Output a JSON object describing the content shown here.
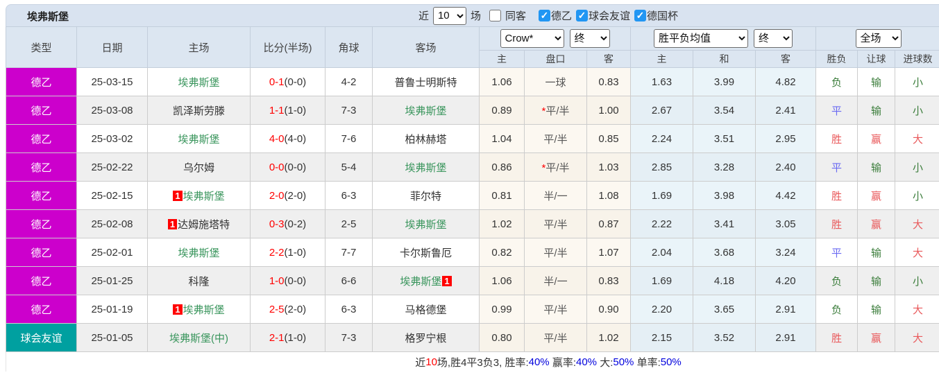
{
  "page": {
    "team_title": "埃弗斯堡"
  },
  "topbar": {
    "recent_label": "近",
    "recent_count": "10",
    "games_label": "场",
    "same_away_label": "同客",
    "same_away_checked": false,
    "filters": [
      {
        "label": "德乙",
        "checked": true
      },
      {
        "label": "球会友谊",
        "checked": true
      },
      {
        "label": "德国杯",
        "checked": true
      }
    ]
  },
  "table": {
    "columns": {
      "type": "类型",
      "date": "日期",
      "home": "主场",
      "score": "比分(半场)",
      "corner": "角球",
      "away": "客场"
    },
    "selects": {
      "bookmaker": "Crow*",
      "bookmaker_state": "终",
      "avg": "胜平负均值",
      "avg_state": "终",
      "scope": "全场"
    },
    "sub_columns": {
      "h_home": "主",
      "h_line": "盘口",
      "h_away": "客",
      "a_home": "主",
      "a_draw": "和",
      "a_away": "客",
      "r_wdl": "胜负",
      "r_handicap": "让球",
      "r_goals": "进球数"
    },
    "rows": [
      {
        "type": "德乙",
        "type_key": "league",
        "date": "25-03-15",
        "home": {
          "name": "埃弗斯堡",
          "green": true,
          "badge": ""
        },
        "score": {
          "full": "0-1",
          "half": "(0-0)"
        },
        "corner": "4-2",
        "away": {
          "name": "普鲁士明斯特",
          "green": false,
          "badge": ""
        },
        "crown": {
          "home": "1.06",
          "line": "一球",
          "star": false,
          "away": "0.83"
        },
        "avg": {
          "home": "1.63",
          "draw": "3.99",
          "away": "4.82"
        },
        "result": {
          "wdl": {
            "text": "负",
            "color": "green"
          },
          "handicap": {
            "text": "输",
            "color": "green"
          },
          "goals": {
            "text": "小",
            "color": "green"
          }
        }
      },
      {
        "type": "德乙",
        "type_key": "league",
        "date": "25-03-08",
        "home": {
          "name": "凯泽斯劳滕",
          "green": false,
          "badge": ""
        },
        "score": {
          "full": "1-1",
          "half": "(1-0)"
        },
        "corner": "7-3",
        "away": {
          "name": "埃弗斯堡",
          "green": true,
          "badge": ""
        },
        "crown": {
          "home": "0.89",
          "line": "平/半",
          "star": true,
          "away": "1.00"
        },
        "avg": {
          "home": "2.67",
          "draw": "3.54",
          "away": "2.41"
        },
        "result": {
          "wdl": {
            "text": "平",
            "color": "blue"
          },
          "handicap": {
            "text": "输",
            "color": "green"
          },
          "goals": {
            "text": "小",
            "color": "green"
          }
        }
      },
      {
        "type": "德乙",
        "type_key": "league",
        "date": "25-03-02",
        "home": {
          "name": "埃弗斯堡",
          "green": true,
          "badge": ""
        },
        "score": {
          "full": "4-0",
          "half": "(4-0)"
        },
        "corner": "7-6",
        "away": {
          "name": "柏林赫塔",
          "green": false,
          "badge": ""
        },
        "crown": {
          "home": "1.04",
          "line": "平/半",
          "star": false,
          "away": "0.85"
        },
        "avg": {
          "home": "2.24",
          "draw": "3.51",
          "away": "2.95"
        },
        "result": {
          "wdl": {
            "text": "胜",
            "color": "red"
          },
          "handicap": {
            "text": "赢",
            "color": "red"
          },
          "goals": {
            "text": "大",
            "color": "red"
          }
        }
      },
      {
        "type": "德乙",
        "type_key": "league",
        "date": "25-02-22",
        "home": {
          "name": "乌尔姆",
          "green": false,
          "badge": ""
        },
        "score": {
          "full": "0-0",
          "half": "(0-0)"
        },
        "corner": "5-4",
        "away": {
          "name": "埃弗斯堡",
          "green": true,
          "badge": ""
        },
        "crown": {
          "home": "0.86",
          "line": "平/半",
          "star": true,
          "away": "1.03"
        },
        "avg": {
          "home": "2.85",
          "draw": "3.28",
          "away": "2.40"
        },
        "result": {
          "wdl": {
            "text": "平",
            "color": "blue"
          },
          "handicap": {
            "text": "输",
            "color": "green"
          },
          "goals": {
            "text": "小",
            "color": "green"
          }
        }
      },
      {
        "type": "德乙",
        "type_key": "league",
        "date": "25-02-15",
        "home": {
          "name": "埃弗斯堡",
          "green": true,
          "badge": "1"
        },
        "score": {
          "full": "2-0",
          "half": "(2-0)"
        },
        "corner": "6-3",
        "away": {
          "name": "菲尔特",
          "green": false,
          "badge": ""
        },
        "crown": {
          "home": "0.81",
          "line": "半/一",
          "star": false,
          "away": "1.08"
        },
        "avg": {
          "home": "1.69",
          "draw": "3.98",
          "away": "4.42"
        },
        "result": {
          "wdl": {
            "text": "胜",
            "color": "red"
          },
          "handicap": {
            "text": "赢",
            "color": "red"
          },
          "goals": {
            "text": "小",
            "color": "green"
          }
        }
      },
      {
        "type": "德乙",
        "type_key": "league",
        "date": "25-02-08",
        "home": {
          "name": "达姆施塔特",
          "green": false,
          "badge": "1"
        },
        "score": {
          "full": "0-3",
          "half": "(0-2)"
        },
        "corner": "2-5",
        "away": {
          "name": "埃弗斯堡",
          "green": true,
          "badge": ""
        },
        "crown": {
          "home": "1.02",
          "line": "平/半",
          "star": false,
          "away": "0.87"
        },
        "avg": {
          "home": "2.22",
          "draw": "3.41",
          "away": "3.05"
        },
        "result": {
          "wdl": {
            "text": "胜",
            "color": "red"
          },
          "handicap": {
            "text": "赢",
            "color": "red"
          },
          "goals": {
            "text": "大",
            "color": "red"
          }
        }
      },
      {
        "type": "德乙",
        "type_key": "league",
        "date": "25-02-01",
        "home": {
          "name": "埃弗斯堡",
          "green": true,
          "badge": ""
        },
        "score": {
          "full": "2-2",
          "half": "(1-0)"
        },
        "corner": "7-7",
        "away": {
          "name": "卡尔斯鲁厄",
          "green": false,
          "badge": ""
        },
        "crown": {
          "home": "0.82",
          "line": "平/半",
          "star": false,
          "away": "1.07"
        },
        "avg": {
          "home": "2.04",
          "draw": "3.68",
          "away": "3.24"
        },
        "result": {
          "wdl": {
            "text": "平",
            "color": "blue"
          },
          "handicap": {
            "text": "输",
            "color": "green"
          },
          "goals": {
            "text": "大",
            "color": "red"
          }
        }
      },
      {
        "type": "德乙",
        "type_key": "league",
        "date": "25-01-25",
        "home": {
          "name": "科隆",
          "green": false,
          "badge": ""
        },
        "score": {
          "full": "1-0",
          "half": "(0-0)"
        },
        "corner": "6-6",
        "away": {
          "name": "埃弗斯堡",
          "green": true,
          "badge": "1"
        },
        "crown": {
          "home": "1.06",
          "line": "半/一",
          "star": false,
          "away": "0.83"
        },
        "avg": {
          "home": "1.69",
          "draw": "4.18",
          "away": "4.20"
        },
        "result": {
          "wdl": {
            "text": "负",
            "color": "green"
          },
          "handicap": {
            "text": "输",
            "color": "green"
          },
          "goals": {
            "text": "小",
            "color": "green"
          }
        }
      },
      {
        "type": "德乙",
        "type_key": "league",
        "date": "25-01-19",
        "home": {
          "name": "埃弗斯堡",
          "green": true,
          "badge": "1"
        },
        "score": {
          "full": "2-5",
          "half": "(2-0)"
        },
        "corner": "6-3",
        "away": {
          "name": "马格德堡",
          "green": false,
          "badge": ""
        },
        "crown": {
          "home": "0.99",
          "line": "平/半",
          "star": false,
          "away": "0.90"
        },
        "avg": {
          "home": "2.20",
          "draw": "3.65",
          "away": "2.91"
        },
        "result": {
          "wdl": {
            "text": "负",
            "color": "green"
          },
          "handicap": {
            "text": "输",
            "color": "green"
          },
          "goals": {
            "text": "大",
            "color": "red"
          }
        }
      },
      {
        "type": "球会友谊",
        "type_key": "friendly",
        "date": "25-01-05",
        "home": {
          "name": "埃弗斯堡(中)",
          "green": true,
          "badge": ""
        },
        "score": {
          "full": "2-1",
          "half": "(1-0)"
        },
        "corner": "7-3",
        "away": {
          "name": "格罗宁根",
          "green": false,
          "badge": ""
        },
        "crown": {
          "home": "0.80",
          "line": "平/半",
          "star": false,
          "away": "1.02"
        },
        "avg": {
          "home": "2.15",
          "draw": "3.52",
          "away": "2.91"
        },
        "result": {
          "wdl": {
            "text": "胜",
            "color": "red"
          },
          "handicap": {
            "text": "赢",
            "color": "red"
          },
          "goals": {
            "text": "大",
            "color": "red"
          }
        }
      }
    ]
  },
  "summary": {
    "segments": [
      {
        "text": "近",
        "color": "dark"
      },
      {
        "text": "10",
        "color": "red"
      },
      {
        "text": "场,胜4平3负3, 胜率:",
        "color": "dark"
      },
      {
        "text": "40%",
        "color": "blue"
      },
      {
        "text": " 赢率:",
        "color": "dark"
      },
      {
        "text": "40%",
        "color": "blue"
      },
      {
        "text": " 大:",
        "color": "dark"
      },
      {
        "text": "50%",
        "color": "blue"
      },
      {
        "text": " 单率:",
        "color": "dark"
      },
      {
        "text": "50%",
        "color": "blue"
      }
    ]
  },
  "colors": {
    "league_bg": "#cc00cc",
    "friendly_bg": "#00a0a0",
    "win": "#e9595b",
    "draw": "#6a6af2",
    "lose": "#3b7d3b",
    "score_red": "#ff0000",
    "team_focus": "#39955c",
    "value_blue": "#0000dd",
    "value_red": "#ff0000"
  }
}
